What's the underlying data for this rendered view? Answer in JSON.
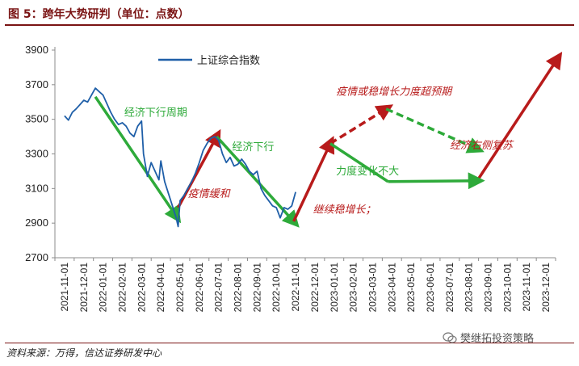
{
  "title": "图 5：跨年大势研判（单位：点数）",
  "source": "资料来源：万得，信达证券研发中心",
  "watermark": "樊继拓投资策略",
  "colors": {
    "line": "#1f5fa8",
    "green": "#2eaa3a",
    "red": "#b81b1b",
    "title": "#7a1414",
    "axis": "#999999"
  },
  "chart_data": {
    "type": "line",
    "y_ticks": [
      2700,
      2900,
      3100,
      3300,
      3500,
      3700,
      3900
    ],
    "ylim": [
      2700,
      3900
    ],
    "x_labels": [
      "2021-11-01",
      "2021-12-01",
      "2022-01-01",
      "2022-02-01",
      "2022-03-01",
      "2022-04-01",
      "2022-05-01",
      "2022-06-01",
      "2022-07-01",
      "2022-08-01",
      "2022-09-01",
      "2022-10-01",
      "2022-11-01",
      "2022-12-01",
      "2023-01-01",
      "2023-02-01",
      "2023-03-01",
      "2023-04-01",
      "2023-05-01",
      "2023-06-01",
      "2023-07-01",
      "2023-08-01",
      "2023-09-01",
      "2023-10-01",
      "2023-11-01",
      "2023-12-01"
    ],
    "legend": "上证综合指数",
    "series": [
      {
        "name": "上证综合指数",
        "points": [
          [
            0,
            3520
          ],
          [
            0.2,
            3495
          ],
          [
            0.4,
            3540
          ],
          [
            0.6,
            3560
          ],
          [
            0.8,
            3585
          ],
          [
            1.0,
            3610
          ],
          [
            1.2,
            3600
          ],
          [
            1.4,
            3640
          ],
          [
            1.6,
            3680
          ],
          [
            1.8,
            3660
          ],
          [
            2.0,
            3640
          ],
          [
            2.2,
            3590
          ],
          [
            2.4,
            3540
          ],
          [
            2.6,
            3500
          ],
          [
            2.8,
            3470
          ],
          [
            3.0,
            3480
          ],
          [
            3.2,
            3460
          ],
          [
            3.4,
            3420
          ],
          [
            3.6,
            3400
          ],
          [
            3.8,
            3460
          ],
          [
            4.0,
            3490
          ],
          [
            4.1,
            3300
          ],
          [
            4.3,
            3170
          ],
          [
            4.5,
            3250
          ],
          [
            4.7,
            3200
          ],
          [
            4.9,
            3150
          ],
          [
            5.0,
            3260
          ],
          [
            5.2,
            3140
          ],
          [
            5.4,
            3070
          ],
          [
            5.6,
            3000
          ],
          [
            5.8,
            2930
          ],
          [
            5.9,
            2880
          ],
          [
            6.0,
            3030
          ],
          [
            6.2,
            3060
          ],
          [
            6.4,
            3100
          ],
          [
            6.6,
            3140
          ],
          [
            6.8,
            3190
          ],
          [
            7.0,
            3250
          ],
          [
            7.2,
            3320
          ],
          [
            7.4,
            3360
          ],
          [
            7.6,
            3390
          ],
          [
            7.8,
            3400
          ],
          [
            8.0,
            3380
          ],
          [
            8.2,
            3300
          ],
          [
            8.4,
            3250
          ],
          [
            8.6,
            3280
          ],
          [
            8.8,
            3230
          ],
          [
            9.0,
            3240
          ],
          [
            9.2,
            3270
          ],
          [
            9.4,
            3240
          ],
          [
            9.6,
            3200
          ],
          [
            9.8,
            3180
          ],
          [
            10.0,
            3200
          ],
          [
            10.2,
            3100
          ],
          [
            10.4,
            3060
          ],
          [
            10.6,
            3030
          ],
          [
            10.8,
            3000
          ],
          [
            11.0,
            2990
          ],
          [
            11.2,
            2930
          ],
          [
            11.4,
            2990
          ],
          [
            11.6,
            2980
          ],
          [
            11.8,
            3000
          ],
          [
            12.0,
            3080
          ]
        ]
      }
    ],
    "annotations": [
      {
        "name": "经济下行周期",
        "color": "green",
        "from": [
          1.6,
          3630
        ],
        "to": [
          5.8,
          2940
        ],
        "text_at": [
          3.1,
          3520
        ]
      },
      {
        "name": "疫情缓和",
        "color": "red",
        "from": [
          5.9,
          2990
        ],
        "to": [
          7.9,
          3400
        ],
        "text_at": [
          6.4,
          3050
        ]
      },
      {
        "name": "经济下行",
        "color": "green",
        "from": [
          7.9,
          3400
        ],
        "to": [
          11.9,
          2910
        ],
        "text_at": [
          8.7,
          3320
        ]
      },
      {
        "name": "继续稳增长；",
        "color": "red",
        "from": [
          11.9,
          2910
        ],
        "to": [
          13.8,
          3360
        ],
        "text_at": [
          12.9,
          2960
        ]
      },
      {
        "name": "疫情或稳增长力度超预期",
        "color": "red",
        "dashed": true,
        "from": [
          13.8,
          3360
        ],
        "to": [
          16.7,
          3560
        ],
        "text_at": [
          14.1,
          3640
        ]
      },
      {
        "name": "",
        "color": "green",
        "dashed": true,
        "from": [
          16.7,
          3560
        ],
        "to": [
          21.4,
          3330
        ],
        "text_at": null
      },
      {
        "name": "经济右侧复苏",
        "color": "red",
        "from": [
          21.4,
          3140
        ],
        "to": [
          25.6,
          3850
        ],
        "text_at": [
          20.0,
          3330
        ]
      },
      {
        "name": "力度变化不大",
        "color": "green",
        "from": [
          13.8,
          3360
        ],
        "to": [
          16.8,
          3140
        ],
        "to2": [
          21.4,
          3145
        ],
        "text_at": [
          14.1,
          3180
        ]
      }
    ]
  }
}
